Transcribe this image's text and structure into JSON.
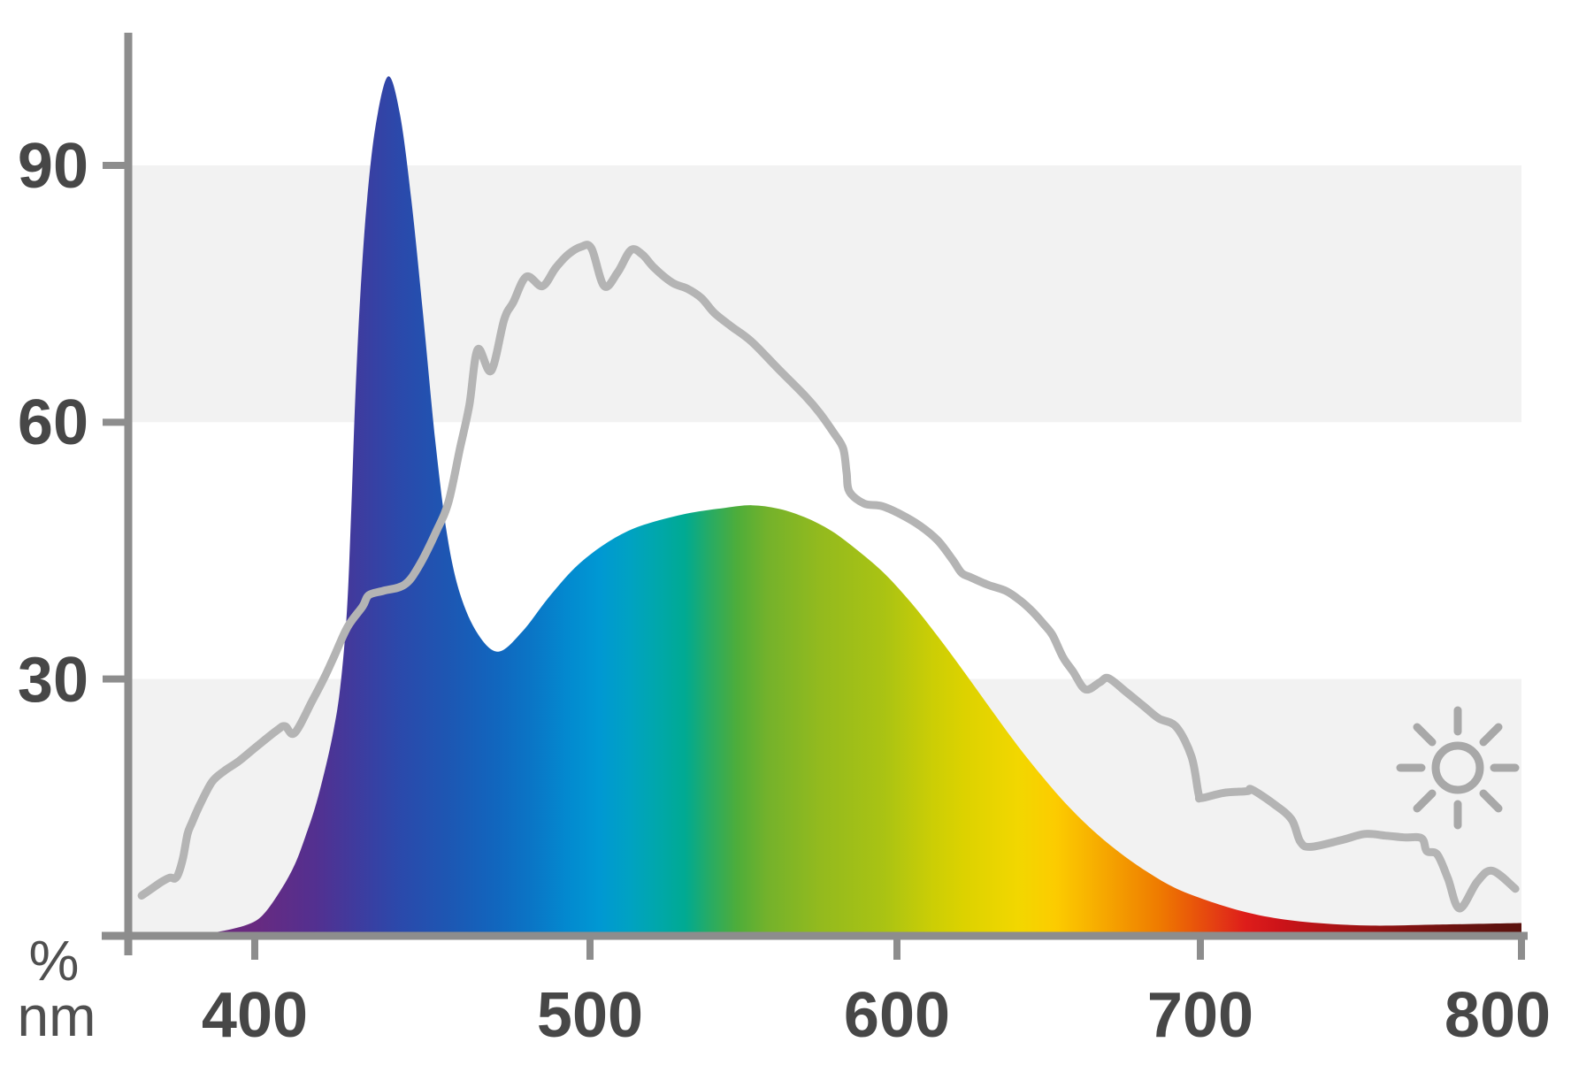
{
  "chart_data": {
    "type": "area",
    "title": "",
    "xlabel": "nm",
    "ylabel": "%",
    "x_axis": {
      "ticks": [
        400,
        500,
        600,
        700,
        800
      ],
      "tick_labels": [
        "400",
        "500",
        "600",
        "700",
        "800"
      ],
      "range_nm": [
        362,
        800
      ]
    },
    "y_axis": {
      "ticks": [
        90,
        60,
        30
      ],
      "tick_labels": [
        "90",
        "60",
        "30"
      ],
      "range_percent": [
        0,
        105
      ]
    },
    "grid": false,
    "legend": "none",
    "background_bands_percent": [
      [
        0,
        30
      ],
      [
        60,
        90
      ]
    ],
    "annotations": [
      {
        "icon": "sun-icon",
        "position": "lower-right",
        "color": "#a8a8a8"
      }
    ],
    "series": [
      {
        "name": "led-spectrum",
        "type": "area",
        "fill": "spectrum-gradient",
        "points_nm_percent": [
          [
            362,
            0
          ],
          [
            375,
            0
          ],
          [
            385,
            0.3
          ],
          [
            392,
            0.7
          ],
          [
            399,
            1.5
          ],
          [
            403,
            2.7
          ],
          [
            408,
            5.5
          ],
          [
            412,
            8.4
          ],
          [
            415,
            11.5
          ],
          [
            418,
            15
          ],
          [
            421,
            19.5
          ],
          [
            423.5,
            24
          ],
          [
            425.5,
            29
          ],
          [
            427.5,
            38
          ],
          [
            428.8,
            50
          ],
          [
            430,
            63
          ],
          [
            431.5,
            75
          ],
          [
            433.5,
            86
          ],
          [
            436.2,
            95
          ],
          [
            439.8,
            100.4
          ],
          [
            443.3,
            96
          ],
          [
            446.7,
            86
          ],
          [
            450.1,
            73
          ],
          [
            453.8,
            58
          ],
          [
            457.3,
            47
          ],
          [
            461.2,
            40
          ],
          [
            466.5,
            35.3
          ],
          [
            472.6,
            33.2
          ],
          [
            479.7,
            35.5
          ],
          [
            487.6,
            39.5
          ],
          [
            495.5,
            43
          ],
          [
            503.7,
            45.5
          ],
          [
            512.4,
            47.3
          ],
          [
            521,
            48.4
          ],
          [
            532.6,
            49.4
          ],
          [
            544.1,
            50
          ],
          [
            552.7,
            50.3
          ],
          [
            561.4,
            49.9
          ],
          [
            570,
            48.9
          ],
          [
            578.7,
            47.3
          ],
          [
            587.3,
            45
          ],
          [
            596,
            42.3
          ],
          [
            604.7,
            38.9
          ],
          [
            613.4,
            35
          ],
          [
            622.2,
            30.8
          ],
          [
            630.9,
            26.5
          ],
          [
            639.6,
            22.3
          ],
          [
            648.4,
            18.4
          ],
          [
            657.1,
            14.9
          ],
          [
            665.9,
            11.9
          ],
          [
            674.6,
            9.4
          ],
          [
            683.3,
            7.3
          ],
          [
            691.6,
            5.6
          ],
          [
            700.8,
            4.3
          ],
          [
            711.8,
            3
          ],
          [
            722.9,
            2.1
          ],
          [
            736.6,
            1.5
          ],
          [
            753.2,
            1.2
          ],
          [
            772.5,
            1.3
          ],
          [
            800,
            1.5
          ]
        ]
      },
      {
        "name": "daylight-reference",
        "type": "line",
        "color": "#b4b4b4",
        "points_nm_percent": [
          [
            366,
            4.7
          ],
          [
            369,
            5.5
          ],
          [
            372,
            6.3
          ],
          [
            374.5,
            6.8
          ],
          [
            376,
            6.7
          ],
          [
            377.1,
            7.3
          ],
          [
            378.5,
            9.2
          ],
          [
            379.8,
            11.9
          ],
          [
            381.1,
            13.2
          ],
          [
            383.5,
            15.3
          ],
          [
            387.2,
            18
          ],
          [
            391,
            19.3
          ],
          [
            395.2,
            20.4
          ],
          [
            400.5,
            22.1
          ],
          [
            406.6,
            24
          ],
          [
            409,
            24.5
          ],
          [
            411.9,
            23.7
          ],
          [
            417.2,
            27.5
          ],
          [
            420.8,
            30.2
          ],
          [
            423.5,
            32.5
          ],
          [
            427.7,
            36.1
          ],
          [
            432.2,
            38.5
          ],
          [
            434,
            39.8
          ],
          [
            438.3,
            40.3
          ],
          [
            444.6,
            41
          ],
          [
            448.8,
            43.1
          ],
          [
            454.1,
            47.2
          ],
          [
            457.8,
            50.7
          ],
          [
            461.2,
            56.9
          ],
          [
            464,
            62
          ],
          [
            466.5,
            68.5
          ],
          [
            470.5,
            66
          ],
          [
            474.4,
            72
          ],
          [
            477.1,
            74
          ],
          [
            481,
            77
          ],
          [
            485.8,
            75.9
          ],
          [
            489.7,
            78
          ],
          [
            493.5,
            79.6
          ],
          [
            497.4,
            80.5
          ],
          [
            500.5,
            80.3
          ],
          [
            504.6,
            75.9
          ],
          [
            509,
            77.5
          ],
          [
            513.3,
            80.1
          ],
          [
            517,
            79.6
          ],
          [
            521,
            78
          ],
          [
            526.8,
            76.3
          ],
          [
            531.7,
            75.6
          ],
          [
            536.3,
            74.5
          ],
          [
            540.4,
            72.8
          ],
          [
            546,
            71.2
          ],
          [
            552.7,
            69.4
          ],
          [
            561.4,
            66.2
          ],
          [
            570,
            63.1
          ],
          [
            575,
            61
          ],
          [
            579.5,
            58.7
          ],
          [
            582.5,
            56.9
          ],
          [
            583.6,
            54.1
          ],
          [
            584.5,
            51.9
          ],
          [
            589.3,
            50.5
          ],
          [
            595.1,
            50.2
          ],
          [
            600.9,
            49.3
          ],
          [
            607.6,
            47.9
          ],
          [
            613.4,
            46.2
          ],
          [
            618.4,
            43.9
          ],
          [
            621.3,
            42.4
          ],
          [
            624.2,
            41.9
          ],
          [
            630,
            41
          ],
          [
            635.9,
            40.3
          ],
          [
            640.5,
            39.2
          ],
          [
            644.6,
            37.9
          ],
          [
            648.4,
            36.4
          ],
          [
            651.3,
            35.1
          ],
          [
            654.8,
            32.5
          ],
          [
            658,
            30.9
          ],
          [
            662.1,
            28.8
          ],
          [
            666.8,
            29.6
          ],
          [
            669.7,
            30.1
          ],
          [
            675.5,
            28.5
          ],
          [
            681.4,
            26.8
          ],
          [
            686.3,
            25.4
          ],
          [
            692.1,
            24.4
          ],
          [
            697.1,
            20.9
          ],
          [
            699.4,
            16.6
          ],
          [
            700.3,
            16.1
          ],
          [
            707.2,
            16.7
          ],
          [
            714.6,
            16.9
          ],
          [
            716,
            17.1
          ],
          [
            722.9,
            15.4
          ],
          [
            728.4,
            13.6
          ],
          [
            731.1,
            11
          ],
          [
            734.4,
            10.4
          ],
          [
            744.1,
            11.2
          ],
          [
            751.2,
            11.9
          ],
          [
            757.9,
            11.7
          ],
          [
            763.4,
            11.5
          ],
          [
            768.9,
            11.4
          ],
          [
            770.5,
            9.9
          ],
          [
            773.8,
            9.5
          ],
          [
            777.1,
            6.7
          ],
          [
            780.7,
            3.2
          ],
          [
            786.2,
            6.3
          ],
          [
            790.9,
            7.6
          ],
          [
            798.1,
            5.5
          ]
        ]
      }
    ]
  },
  "style": {
    "background": "#ffffff",
    "band_color": "#f2f2f2",
    "axis_color": "#8d8d8d",
    "tick_label_color": "#474747",
    "unit_label_color": "#4f4f4f",
    "daylight_curve_color": "#b4b4b4",
    "sun_icon_color": "#a8a8a8",
    "spectrum_gradient_stops": [
      [
        390,
        "#6b2a7f"
      ],
      [
        400,
        "#682a80"
      ],
      [
        418,
        "#533090"
      ],
      [
        432,
        "#3c3da0"
      ],
      [
        443,
        "#2b49ab"
      ],
      [
        458,
        "#1d57b3"
      ],
      [
        472,
        "#1166be"
      ],
      [
        483,
        "#0a76c6"
      ],
      [
        493,
        "#0389cf"
      ],
      [
        503,
        "#0098d3"
      ],
      [
        513,
        "#00a2c2"
      ],
      [
        522,
        "#00a7ab"
      ],
      [
        531,
        "#00aa92"
      ],
      [
        539,
        "#27ab64"
      ],
      [
        548,
        "#4ead3a"
      ],
      [
        558,
        "#74b22b"
      ],
      [
        575,
        "#93ba1e"
      ],
      [
        596,
        "#aac313"
      ],
      [
        612,
        "#ccce05"
      ],
      [
        622,
        "#dcd200"
      ],
      [
        640,
        "#f2d700"
      ],
      [
        652,
        "#fccc00"
      ],
      [
        663,
        "#f8b400"
      ],
      [
        675,
        "#f39700"
      ],
      [
        686,
        "#ef7c00"
      ],
      [
        696,
        "#ea5c08"
      ],
      [
        706,
        "#e33a14"
      ],
      [
        714,
        "#de1d1a"
      ],
      [
        725,
        "#cc1319"
      ],
      [
        744,
        "#a81315"
      ],
      [
        763,
        "#851312"
      ],
      [
        783,
        "#671310"
      ],
      [
        800,
        "#5a120e"
      ]
    ]
  }
}
